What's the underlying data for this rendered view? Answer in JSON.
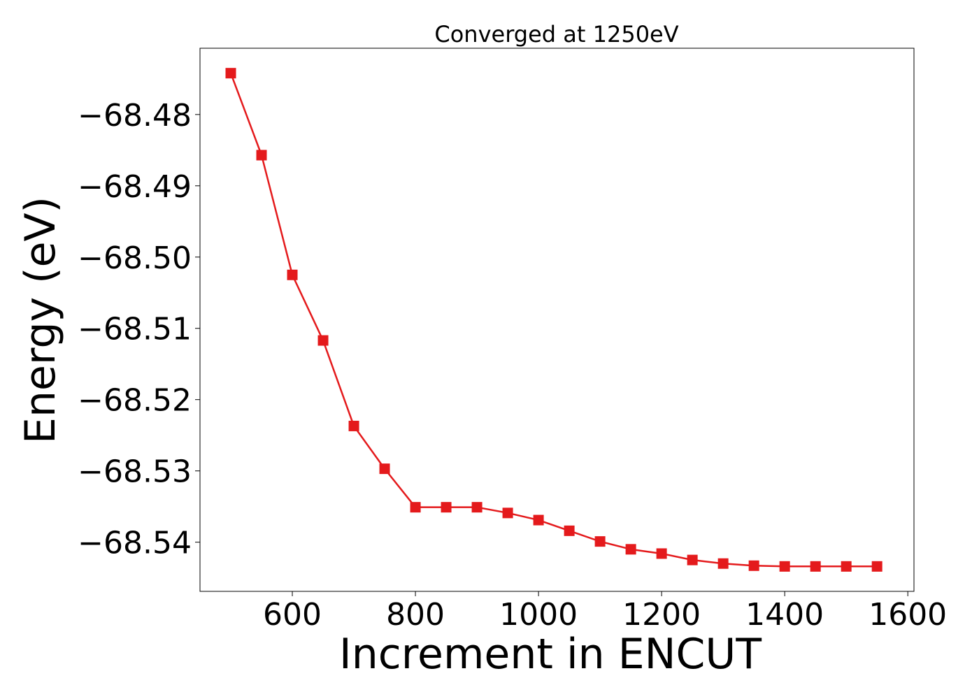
{
  "chart_data": {
    "type": "line",
    "title": "Converged at 1250eV",
    "xlabel": "Increment in ENCUT",
    "ylabel": "Energy (eV)",
    "xlim": [
      450,
      1610
    ],
    "ylim": [
      -68.5469,
      -68.4707
    ],
    "x_ticks": [
      600,
      800,
      1000,
      1200,
      1400,
      1600
    ],
    "x_tick_labels": [
      "600",
      "800",
      "1000",
      "1200",
      "1400",
      "1600"
    ],
    "y_ticks": [
      -68.48,
      -68.49,
      -68.5,
      -68.51,
      -68.52,
      -68.53,
      -68.54
    ],
    "y_tick_labels": [
      "−68.48",
      "−68.49",
      "−68.50",
      "−68.51",
      "−68.52",
      "−68.53",
      "−68.54"
    ],
    "grid": false,
    "marker": "square",
    "color": "#e41a1c",
    "series": [
      {
        "x": [
          500,
          550,
          600,
          650,
          700,
          750,
          800,
          850,
          900,
          950,
          1000,
          1050,
          1100,
          1150,
          1200,
          1250,
          1300,
          1350,
          1400,
          1450,
          1500,
          1550
        ],
        "y": [
          -68.4742,
          -68.4857,
          -68.5025,
          -68.5117,
          -68.5237,
          -68.5297,
          -68.5351,
          -68.5351,
          -68.5351,
          -68.5359,
          -68.5369,
          -68.5384,
          -68.5399,
          -68.541,
          -68.5416,
          -68.5425,
          -68.543,
          -68.5433,
          -68.5434,
          -68.5434,
          -68.5434,
          -68.5434
        ]
      }
    ]
  }
}
